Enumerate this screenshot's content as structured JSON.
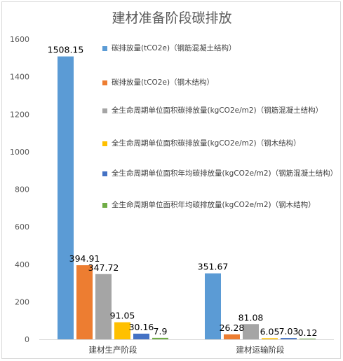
{
  "chart_data": {
    "type": "bar",
    "title": "建材准备阶段碳排放",
    "categories": [
      "建材生产阶段",
      "建材运输阶段"
    ],
    "ylim": [
      0,
      1600
    ],
    "yticks": [
      0,
      200,
      400,
      600,
      800,
      1000,
      1200,
      1400,
      1600
    ],
    "grid": false,
    "legend_position": "right",
    "series": [
      {
        "name": "碳排放量(tCO2e)（钢筋混凝土结构）",
        "values": [
          1508.15,
          351.67
        ],
        "labels": [
          "1508.15",
          "351.67"
        ],
        "color": "#5b9bd5"
      },
      {
        "name": "碳排放量(tCO2e)（钢木结构）",
        "values": [
          394.91,
          26.28
        ],
        "labels": [
          "394.91",
          "26.28"
        ],
        "color": "#ed7d31"
      },
      {
        "name": "全生命周期单位面积碳排放量(kgCO2e/m2)（钢筋混凝土结构）",
        "values": [
          347.72,
          81.08
        ],
        "labels": [
          "347.72",
          "81.08"
        ],
        "color": "#a5a5a5"
      },
      {
        "name": "全生命周期单位面积碳排放量(kgCO2e/m2)（钢木结构）",
        "values": [
          91.05,
          6.05
        ],
        "labels": [
          "91.05",
          "6.05"
        ],
        "color": "#ffc000"
      },
      {
        "name": "全生命周期单位面积年均碳排放量(kgCO2e/m2)（钢筋混凝土结构）",
        "values": [
          30.16,
          7.03
        ],
        "labels": [
          "30.16",
          "7.03"
        ],
        "color": "#4472c4"
      },
      {
        "name": "全生命周期单位面积年均碳排放量(kgCO2e/m2)（钢木结构）",
        "values": [
          7.9,
          0.12
        ],
        "labels": [
          "7.9",
          "0.12"
        ],
        "color": "#70ad47"
      }
    ]
  }
}
